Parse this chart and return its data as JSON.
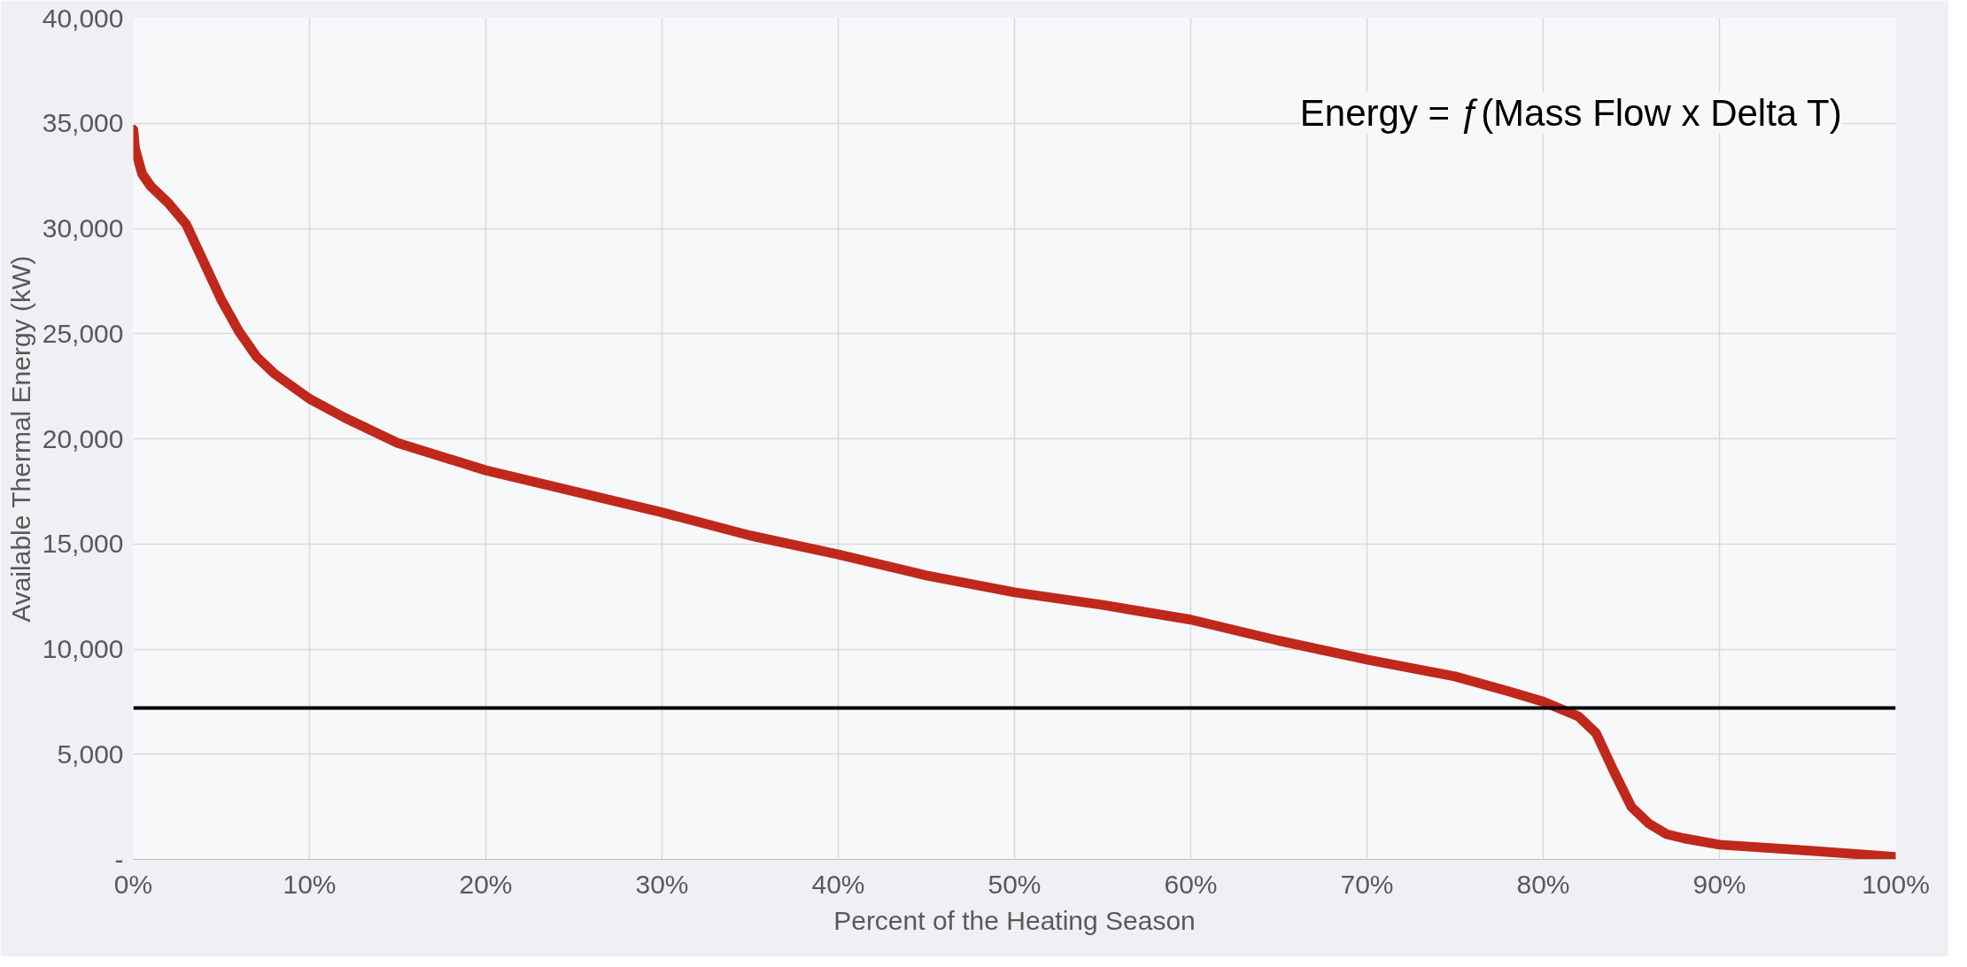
{
  "chart_data": {
    "type": "line",
    "xlabel": "Percent of the Heating Season",
    "ylabel": "Available Thermal Energy (kW)",
    "annotations": [
      "Energy = ƒ(Mass Flow x Delta T)"
    ],
    "x": [
      0,
      0.1,
      0.5,
      1,
      2,
      3,
      4,
      5,
      6,
      7,
      8,
      10,
      12,
      15,
      20,
      25,
      30,
      35,
      40,
      45,
      50,
      55,
      60,
      65,
      70,
      75,
      78,
      80,
      82,
      83,
      84,
      85,
      86,
      87,
      88,
      90,
      95,
      100
    ],
    "series": [
      {
        "color": "#c0281c",
        "values": [
          34700,
          33800,
          32600,
          32000,
          31200,
          30200,
          28400,
          26600,
          25100,
          23900,
          23100,
          21900,
          21000,
          19800,
          18500,
          17500,
          16500,
          15400,
          14500,
          13500,
          12700,
          12100,
          11400,
          10400,
          9500,
          8700,
          8000,
          7500,
          6800,
          6000,
          4200,
          2500,
          1700,
          1200,
          1000,
          700,
          420,
          120
        ]
      }
    ],
    "xlim": [
      0,
      100
    ],
    "ylim": [
      0,
      40000
    ],
    "xticks": [
      {
        "value": 0,
        "label": "0%"
      },
      {
        "value": 10,
        "label": "10%"
      },
      {
        "value": 20,
        "label": "20%"
      },
      {
        "value": 30,
        "label": "30%"
      },
      {
        "value": 40,
        "label": "40%"
      },
      {
        "value": 50,
        "label": "50%"
      },
      {
        "value": 60,
        "label": "60%"
      },
      {
        "value": 70,
        "label": "70%"
      },
      {
        "value": 80,
        "label": "80%"
      },
      {
        "value": 90,
        "label": "90%"
      },
      {
        "value": 100,
        "label": "100%"
      }
    ],
    "yticks": [
      {
        "value": 0,
        "label": "-"
      },
      {
        "value": 5000,
        "label": "5,000"
      },
      {
        "value": 10000,
        "label": "10,000"
      },
      {
        "value": 15000,
        "label": "15,000"
      },
      {
        "value": 20000,
        "label": "20,000"
      },
      {
        "value": 25000,
        "label": "25,000"
      },
      {
        "value": 30000,
        "label": "30,000"
      },
      {
        "value": 35000,
        "label": "35,000"
      },
      {
        "value": 40000,
        "label": "40,000"
      }
    ],
    "ref_lines": [
      {
        "axis": "y",
        "value": 7200,
        "color": "#000000"
      }
    ],
    "grid": true,
    "marker": "none",
    "line_style": "solid"
  }
}
